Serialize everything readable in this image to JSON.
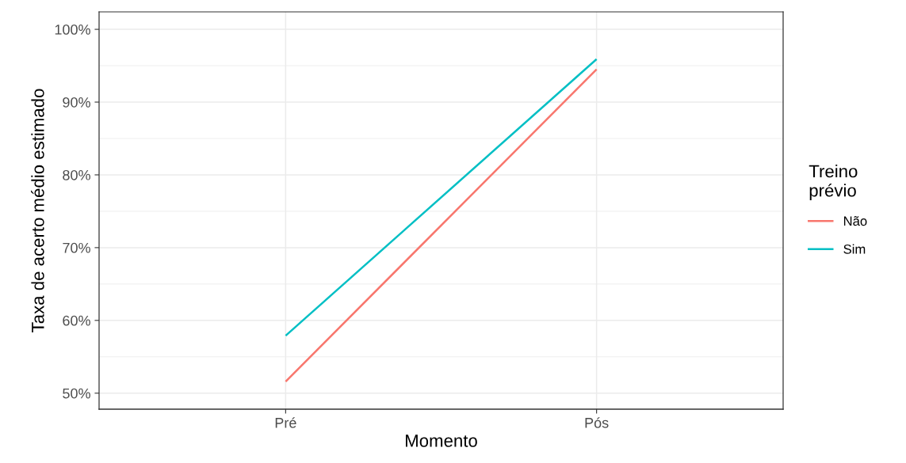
{
  "chart_data": {
    "type": "line",
    "xlabel": "Momento",
    "ylabel": "Taxa de acerto médio estimado",
    "legend_title": "Treino\nprévio",
    "categories": [
      "Pré",
      "Pós"
    ],
    "series": [
      {
        "name": "Não",
        "color": "#f8766d",
        "values": [
          51.6,
          94.5
        ]
      },
      {
        "name": "Sim",
        "color": "#00bfc4",
        "values": [
          57.9,
          95.9
        ]
      }
    ],
    "ylim": [
      47.8,
      102.4
    ],
    "yticks": [
      {
        "value": 50,
        "label": "50%"
      },
      {
        "value": 60,
        "label": "60%"
      },
      {
        "value": 70,
        "label": "70%"
      },
      {
        "value": 80,
        "label": "80%"
      },
      {
        "value": 90,
        "label": "90%"
      },
      {
        "value": 100,
        "label": "100%"
      }
    ],
    "grid": true,
    "legend": "right",
    "marker": "none",
    "line_style": "solid"
  }
}
